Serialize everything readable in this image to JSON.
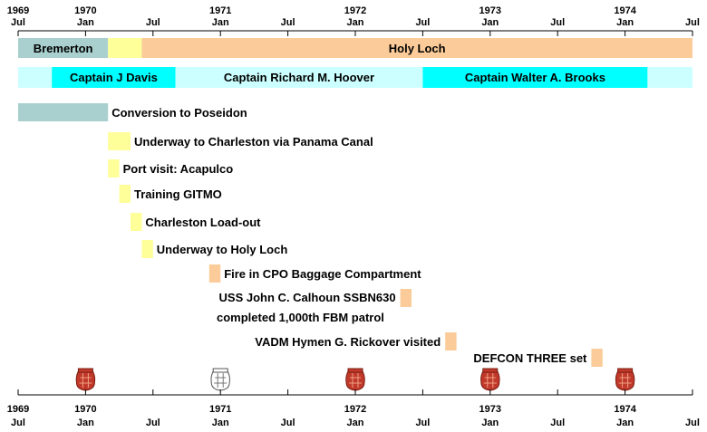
{
  "chart_data": {
    "type": "timeline",
    "x_range": [
      "1969-07",
      "1974-07"
    ],
    "ticks": [
      {
        "date": "1969-07",
        "year": "1969",
        "month": "Jul"
      },
      {
        "date": "1970-01",
        "year": "1970",
        "month": "Jan"
      },
      {
        "date": "1970-07",
        "year": "",
        "month": "Jul"
      },
      {
        "date": "1971-01",
        "year": "1971",
        "month": "Jan"
      },
      {
        "date": "1971-07",
        "year": "",
        "month": "Jul"
      },
      {
        "date": "1972-01",
        "year": "1972",
        "month": "Jan"
      },
      {
        "date": "1972-07",
        "year": "",
        "month": "Jul"
      },
      {
        "date": "1973-01",
        "year": "1973",
        "month": "Jan"
      },
      {
        "date": "1973-07",
        "year": "",
        "month": "Jul"
      },
      {
        "date": "1974-01",
        "year": "1974",
        "month": "Jan"
      },
      {
        "date": "1974-07",
        "year": "",
        "month": "Jul"
      }
    ],
    "location_row": [
      {
        "label": "Bremerton",
        "start": "1969-07",
        "end": "1970-03",
        "color": "#a9d0cf"
      },
      {
        "label": "",
        "start": "1970-03",
        "end": "1970-06",
        "color": "#ffff99"
      },
      {
        "label": "Holy Loch",
        "start": "1970-06",
        "end": "1974-07",
        "color": "#fbcc99"
      }
    ],
    "command_row": [
      {
        "label": "",
        "start": "1969-07",
        "end": "1969-10",
        "color": "#ccffff"
      },
      {
        "label": "Captain J Davis",
        "start": "1969-10",
        "end": "1970-09",
        "color": "#00ffff"
      },
      {
        "label": "Captain Richard M. Hoover",
        "start": "1970-09",
        "end": "1972-07",
        "color": "#ccffff"
      },
      {
        "label": "Captain Walter A. Brooks",
        "start": "1972-07",
        "end": "1974-03",
        "color": "#00ffff"
      },
      {
        "label": "",
        "start": "1974-03",
        "end": "1974-07",
        "color": "#ccffff"
      }
    ],
    "events": [
      {
        "label": "Conversion to Poseidon",
        "start": "1969-07",
        "end": "1970-03",
        "color": "#a9d0cf",
        "side": "right"
      },
      {
        "label": "Underway to Charleston via Panama Canal",
        "start": "1970-03",
        "end": "1970-05",
        "color": "#ffff99",
        "side": "right"
      },
      {
        "label": "Port visit: Acapulco",
        "start": "1970-03",
        "end": "1970-04",
        "color": "#ffff99",
        "side": "right"
      },
      {
        "label": "Training GITMO",
        "start": "1970-04",
        "end": "1970-05",
        "color": "#ffff99",
        "side": "right"
      },
      {
        "label": "Charleston Load-out",
        "start": "1970-05",
        "end": "1970-06",
        "color": "#ffff99",
        "side": "right"
      },
      {
        "label": "Underway to Holy Loch",
        "start": "1970-06",
        "end": "1970-07",
        "color": "#ffff99",
        "side": "right"
      },
      {
        "label": "Fire in CPO Baggage Compartment",
        "start": "1970-12",
        "end": "1971-01",
        "color": "#fbcc99",
        "side": "right"
      },
      {
        "label": "USS John C. Calhoun SSBN630",
        "label2": "completed 1,000th FBM patrol",
        "start": "1972-05",
        "end": "1972-06",
        "color": "#fbcc99",
        "side": "left"
      },
      {
        "label": "VADM Hymen G. Rickover visited",
        "start": "1972-09",
        "end": "1972-10",
        "color": "#fbcc99",
        "side": "left"
      },
      {
        "label": "DEFCON THREE set",
        "start": "1973-10",
        "end": "1973-11",
        "color": "#fbcc99",
        "side": "left"
      }
    ],
    "markers": [
      {
        "date": "1970-01",
        "style": "red",
        "icon": "patrol-patch-icon"
      },
      {
        "date": "1971-01",
        "style": "outline",
        "icon": "patrol-patch-outline-icon"
      },
      {
        "date": "1972-01",
        "style": "red",
        "icon": "patrol-patch-icon"
      },
      {
        "date": "1973-01",
        "style": "red",
        "icon": "patrol-patch-icon"
      },
      {
        "date": "1974-01",
        "style": "red",
        "icon": "patrol-patch-icon"
      }
    ]
  }
}
